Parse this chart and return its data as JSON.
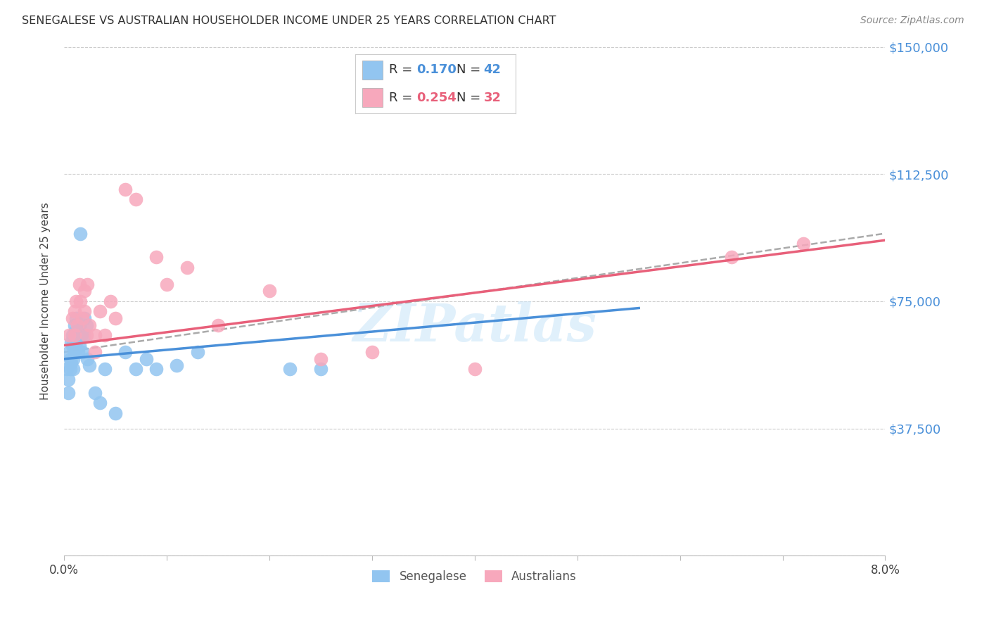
{
  "title": "SENEGALESE VS AUSTRALIAN HOUSEHOLDER INCOME UNDER 25 YEARS CORRELATION CHART",
  "source": "Source: ZipAtlas.com",
  "ylabel": "Householder Income Under 25 years",
  "x_min": 0.0,
  "x_max": 0.08,
  "y_min": 0,
  "y_max": 150000,
  "x_ticks": [
    0.0,
    0.01,
    0.02,
    0.03,
    0.04,
    0.05,
    0.06,
    0.07,
    0.08
  ],
  "x_tick_labels": [
    "0.0%",
    "",
    "",
    "",
    "",
    "",
    "",
    "",
    "8.0%"
  ],
  "y_ticks": [
    0,
    37500,
    75000,
    112500,
    150000
  ],
  "y_tick_labels": [
    "",
    "$37,500",
    "$75,000",
    "$112,500",
    "$150,000"
  ],
  "blue_color": "#92c5f0",
  "pink_color": "#f7a8bc",
  "blue_line_color": "#4a90d9",
  "pink_line_color": "#e8607a",
  "watermark": "ZIPatlas",
  "senegalese_x": [
    0.0003,
    0.0004,
    0.0004,
    0.0005,
    0.0006,
    0.0006,
    0.0007,
    0.0007,
    0.0008,
    0.0008,
    0.0009,
    0.0009,
    0.001,
    0.001,
    0.001,
    0.0011,
    0.0012,
    0.0012,
    0.0013,
    0.0014,
    0.0015,
    0.0015,
    0.0016,
    0.0017,
    0.0018,
    0.002,
    0.002,
    0.0022,
    0.0023,
    0.0025,
    0.003,
    0.0035,
    0.004,
    0.005,
    0.006,
    0.007,
    0.008,
    0.009,
    0.011,
    0.013,
    0.022,
    0.025
  ],
  "senegalese_y": [
    55000,
    52000,
    48000,
    60000,
    58000,
    55000,
    63000,
    57000,
    65000,
    62000,
    58000,
    55000,
    68000,
    64000,
    60000,
    66000,
    70000,
    63000,
    65000,
    60000,
    68000,
    62000,
    95000,
    65000,
    60000,
    70000,
    65000,
    68000,
    58000,
    56000,
    48000,
    45000,
    55000,
    42000,
    60000,
    55000,
    58000,
    55000,
    56000,
    60000,
    55000,
    55000
  ],
  "australians_x": [
    0.0005,
    0.0008,
    0.001,
    0.001,
    0.0012,
    0.0013,
    0.0015,
    0.0016,
    0.0018,
    0.002,
    0.002,
    0.0022,
    0.0023,
    0.0025,
    0.003,
    0.003,
    0.0035,
    0.004,
    0.0045,
    0.005,
    0.006,
    0.007,
    0.009,
    0.01,
    0.012,
    0.015,
    0.02,
    0.025,
    0.03,
    0.04,
    0.065,
    0.072
  ],
  "australians_y": [
    65000,
    70000,
    72000,
    65000,
    75000,
    68000,
    80000,
    75000,
    70000,
    78000,
    72000,
    65000,
    80000,
    68000,
    65000,
    60000,
    72000,
    65000,
    75000,
    70000,
    108000,
    105000,
    88000,
    80000,
    85000,
    68000,
    78000,
    58000,
    60000,
    55000,
    88000,
    92000
  ],
  "blue_trend_x": [
    0.0,
    0.056
  ],
  "blue_trend_y": [
    58000,
    73000
  ],
  "pink_trend_x": [
    0.0,
    0.08
  ],
  "pink_trend_y": [
    62000,
    93000
  ],
  "dash_trend_x": [
    0.0,
    0.08
  ],
  "dash_trend_y": [
    60000,
    95000
  ]
}
